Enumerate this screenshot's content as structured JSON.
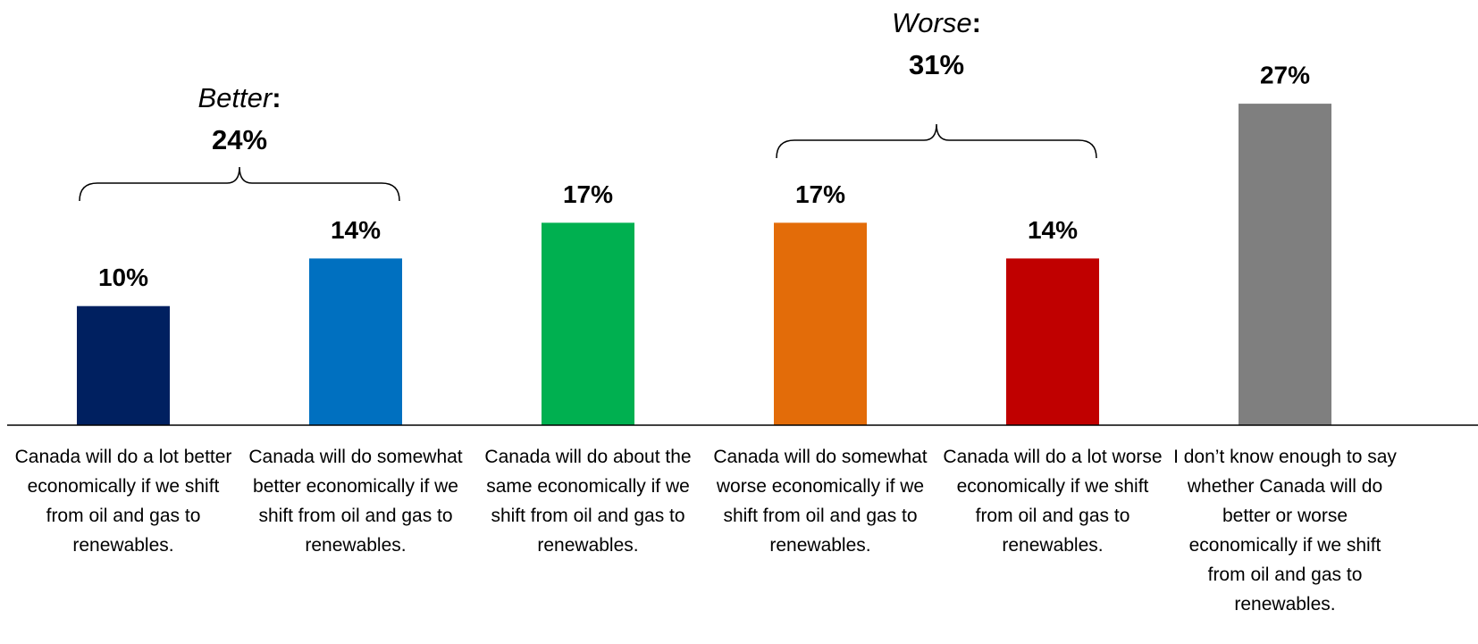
{
  "chart_data": {
    "type": "bar",
    "categories": [
      "Canada will do a lot better economically if we shift from oil and gas to renewables.",
      "Canada will do somewhat better economically if we shift from oil and gas to renewables.",
      "Canada will do about the same economically if we shift from oil and gas to renewables.",
      "Canada will do somewhat worse economically if we shift from oil and gas to renewables.",
      "Canada will do a lot worse economically if we shift from oil and gas to renewables.",
      "I don’t know enough to say whether Canada will do better or worse economically if we shift from oil and gas to renewables."
    ],
    "values": [
      10,
      14,
      17,
      17,
      14,
      27
    ],
    "value_labels": [
      "10%",
      "14%",
      "17%",
      "17%",
      "14%",
      "27%"
    ],
    "colors": [
      "#002060",
      "#0070c0",
      "#00b050",
      "#e36c09",
      "#c00000",
      "#7f7f7f"
    ],
    "annotations": [
      {
        "name": "Better",
        "separator": ":",
        "total": "24%"
      },
      {
        "name": "Worse",
        "separator": ":",
        "total": "31%"
      }
    ]
  }
}
